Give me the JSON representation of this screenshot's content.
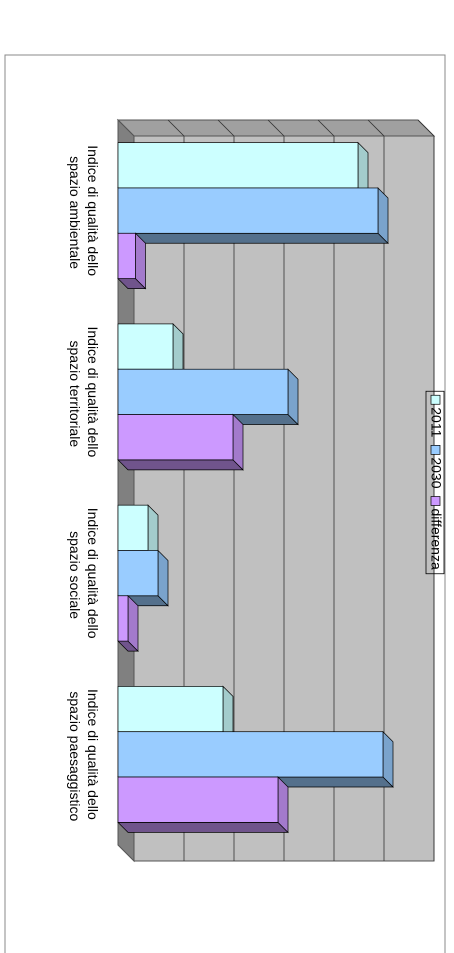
{
  "chart_data": {
    "type": "bar3d",
    "categories": [
      "Indice di qualità dello spazio ambientale",
      "Indice di qualità dello spazio territoriale",
      "Indice di qualità dello spazio sociale",
      "Indice di qualità dello spazio paesaggistico"
    ],
    "series": [
      {
        "name": "2011",
        "color": "#ccffff",
        "values": [
          4.8,
          1.1,
          0.6,
          2.1
        ]
      },
      {
        "name": "2030",
        "color": "#99ccff",
        "values": [
          5.2,
          3.4,
          0.8,
          5.3
        ]
      },
      {
        "name": "differenza",
        "color": "#cc99ff",
        "values": [
          0.35,
          2.3,
          0.2,
          3.2
        ]
      }
    ],
    "ylim": [
      0,
      6
    ],
    "yticks": [
      1,
      2,
      3,
      4,
      5,
      6
    ],
    "grid": true,
    "legend": "bottom"
  }
}
